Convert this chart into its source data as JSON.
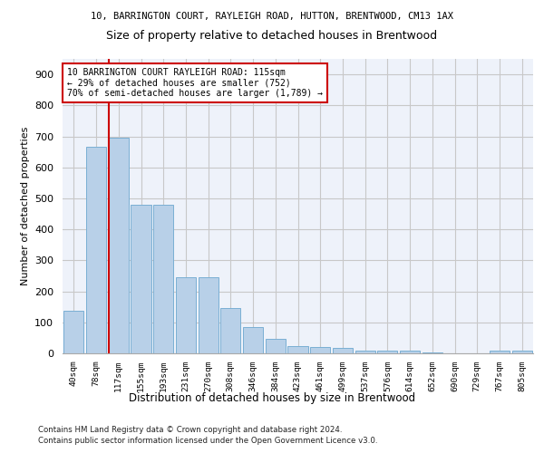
{
  "title1": "10, BARRINGTON COURT, RAYLEIGH ROAD, HUTTON, BRENTWOOD, CM13 1AX",
  "title2": "Size of property relative to detached houses in Brentwood",
  "xlabel": "Distribution of detached houses by size in Brentwood",
  "ylabel": "Number of detached properties",
  "bar_color": "#b8d0e8",
  "bar_edge_color": "#7aafd4",
  "categories": [
    "40sqm",
    "78sqm",
    "117sqm",
    "155sqm",
    "193sqm",
    "231sqm",
    "270sqm",
    "308sqm",
    "346sqm",
    "384sqm",
    "423sqm",
    "461sqm",
    "499sqm",
    "537sqm",
    "576sqm",
    "614sqm",
    "652sqm",
    "690sqm",
    "729sqm",
    "767sqm",
    "805sqm"
  ],
  "values": [
    137,
    667,
    697,
    480,
    480,
    247,
    247,
    147,
    85,
    47,
    22,
    20,
    18,
    10,
    10,
    8,
    2,
    0,
    0,
    8,
    8
  ],
  "ylim": [
    0,
    950
  ],
  "yticks": [
    0,
    100,
    200,
    300,
    400,
    500,
    600,
    700,
    800,
    900
  ],
  "property_line_color": "#cc0000",
  "annotation_line1": "10 BARRINGTON COURT RAYLEIGH ROAD: 115sqm",
  "annotation_line2": "← 29% of detached houses are smaller (752)",
  "annotation_line3": "70% of semi-detached houses are larger (1,789) →",
  "annotation_box_color": "#cc0000",
  "footer1": "Contains HM Land Registry data © Crown copyright and database right 2024.",
  "footer2": "Contains public sector information licensed under the Open Government Licence v3.0.",
  "background_color": "#eef2fa",
  "grid_color": "#c8c8c8"
}
